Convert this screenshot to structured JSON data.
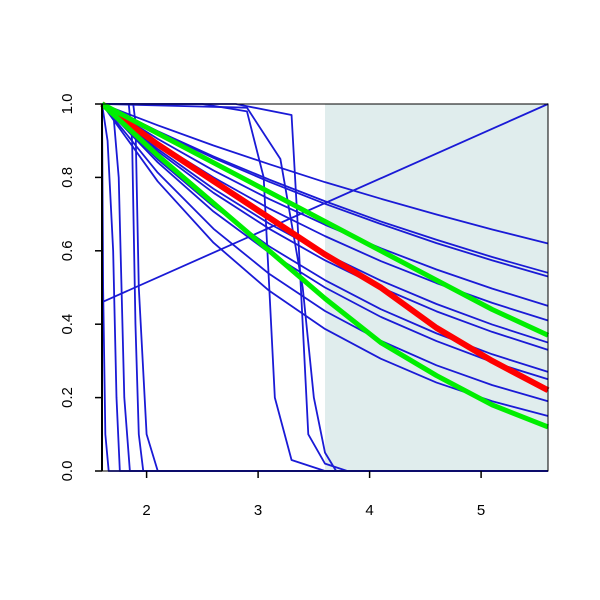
{
  "chart_data": {
    "type": "line",
    "xlim": [
      1.6,
      5.6
    ],
    "ylim": [
      0,
      1
    ],
    "xticks": [
      2,
      3,
      4,
      5
    ],
    "yticks": [
      {
        "value": 0,
        "label": "0.0"
      },
      0.2,
      0.4,
      0.6,
      0.8,
      {
        "value": 1,
        "label": "1.0"
      }
    ],
    "shaded_region": [
      3.6,
      5.6
    ],
    "shade_color": "#e0eded",
    "series": [
      {
        "color": "#1a1ad6",
        "x": [
          1.6,
          2.1,
          2.6,
          3.1,
          3.6,
          4.1,
          4.6,
          5.1,
          5.6
        ],
        "values": [
          1,
          0.942,
          0.887,
          0.836,
          0.787,
          0.742,
          0.699,
          0.658,
          0.62
        ]
      },
      {
        "color": "#1a1ad6",
        "x": [
          1.6,
          2.1,
          2.6,
          3.1,
          3.6,
          4.1,
          4.6,
          5.1,
          5.6
        ],
        "values": [
          1,
          0.926,
          0.857,
          0.794,
          0.735,
          0.68,
          0.63,
          0.583,
          0.54
        ]
      },
      {
        "color": "#1a1ad6",
        "x": [
          1.6,
          2.1,
          2.6,
          3.1,
          3.6,
          4.1,
          4.6,
          5.1,
          5.6
        ],
        "values": [
          1,
          0.924,
          0.853,
          0.788,
          0.728,
          0.673,
          0.621,
          0.574,
          0.53
        ]
      },
      {
        "color": "#1a1ad6",
        "x": [
          1.6,
          2.1,
          2.6,
          3.1,
          3.6,
          4.1,
          4.6,
          5.1,
          5.6
        ],
        "values": [
          1,
          0.905,
          0.819,
          0.741,
          0.671,
          0.607,
          0.549,
          0.497,
          0.45
        ]
      },
      {
        "color": "#1a1ad6",
        "x": [
          1.6,
          2.1,
          2.6,
          3.1,
          3.6,
          4.1,
          4.6,
          5.1,
          5.6
        ],
        "values": [
          1,
          0.894,
          0.8,
          0.715,
          0.64,
          0.572,
          0.512,
          0.458,
          0.41
        ]
      },
      {
        "color": "#1a1ad6",
        "x": [
          1.6,
          2.1,
          2.6,
          3.1,
          3.6,
          4.1,
          4.6,
          5.1,
          5.6
        ],
        "values": [
          1,
          0.877,
          0.769,
          0.674,
          0.592,
          0.519,
          0.455,
          0.399,
          0.35
        ]
      },
      {
        "color": "#1a1ad6",
        "x": [
          1.6,
          2.1,
          2.6,
          3.1,
          3.6,
          4.1,
          4.6,
          5.1,
          5.6
        ],
        "values": [
          1,
          0.871,
          0.758,
          0.66,
          0.574,
          0.5,
          0.435,
          0.379,
          0.33
        ]
      },
      {
        "color": "#1a1ad6",
        "x": [
          1.6,
          2.1,
          2.6,
          3.1,
          3.6,
          4.1,
          4.6,
          5.1,
          5.6
        ],
        "values": [
          1,
          0.849,
          0.721,
          0.612,
          0.52,
          0.441,
          0.375,
          0.318,
          0.27
        ]
      },
      {
        "color": "#1a1ad6",
        "x": [
          1.6,
          2.1,
          2.6,
          3.1,
          3.6,
          4.1,
          4.6,
          5.1,
          5.6
        ],
        "values": [
          1,
          0.841,
          0.707,
          0.595,
          0.5,
          0.42,
          0.354,
          0.297,
          0.25
        ]
      },
      {
        "color": "#1a1ad6",
        "x": [
          1.6,
          2.1,
          2.6,
          3.1,
          3.6,
          4.1,
          4.6,
          5.1,
          5.6
        ],
        "values": [
          1,
          0.813,
          0.66,
          0.537,
          0.436,
          0.355,
          0.288,
          0.234,
          0.19
        ]
      },
      {
        "color": "#1a1ad6",
        "x": [
          1.6,
          2.1,
          2.6,
          3.1,
          3.6,
          4.1,
          4.6,
          5.1,
          5.6
        ],
        "values": [
          1,
          0.789,
          0.622,
          0.491,
          0.387,
          0.306,
          0.241,
          0.19,
          0.15
        ]
      },
      {
        "color": "#1a1ad6",
        "x": [
          1.6,
          1.61,
          1.63,
          1.66,
          5.6
        ],
        "values": [
          1,
          0.5,
          0.1,
          0,
          0
        ]
      },
      {
        "color": "#1a1ad6",
        "x": [
          1.6,
          1.65,
          1.7,
          1.73,
          1.76,
          5.6
        ],
        "values": [
          1,
          0.9,
          0.6,
          0.2,
          0,
          0
        ]
      },
      {
        "color": "#1a1ad6",
        "x": [
          1.6,
          1.7,
          1.75,
          1.8,
          1.85,
          5.6
        ],
        "values": [
          1,
          0.98,
          0.8,
          0.2,
          0,
          0
        ]
      },
      {
        "color": "#1a1ad6",
        "x": [
          1.6,
          1.84,
          1.87,
          1.9,
          1.93,
          1.97,
          5.6
        ],
        "values": [
          1,
          1,
          0.9,
          0.4,
          0.1,
          0,
          0
        ]
      },
      {
        "color": "#1a1ad6",
        "x": [
          1.6,
          1.88,
          1.9,
          1.93,
          2.0,
          2.1,
          5.6
        ],
        "values": [
          1,
          1,
          0.95,
          0.5,
          0.1,
          0,
          0
        ]
      },
      {
        "color": "#1a1ad6",
        "x": [
          1.6,
          2.5,
          2.9,
          3.05,
          3.1,
          3.15,
          3.3,
          3.6,
          5.6
        ],
        "values": [
          1,
          1,
          0.98,
          0.8,
          0.5,
          0.2,
          0.03,
          0,
          0
        ]
      },
      {
        "color": "#1a1ad6",
        "x": [
          1.6,
          2.8,
          3.3,
          3.35,
          3.4,
          3.45,
          3.6,
          3.8,
          5.6
        ],
        "values": [
          1,
          1,
          0.97,
          0.7,
          0.4,
          0.1,
          0.02,
          0,
          0
        ]
      },
      {
        "color": "#1a1ad6",
        "x": [
          1.6,
          2.9,
          3.2,
          3.4,
          3.5,
          3.6,
          3.7,
          5.6
        ],
        "values": [
          1,
          0.99,
          0.85,
          0.5,
          0.2,
          0.05,
          0,
          0
        ]
      },
      {
        "color": "#1a1ad6",
        "x": [
          1.6,
          5.6
        ],
        "values": [
          0.46,
          1
        ]
      },
      {
        "color": "#ff0000",
        "width": 6,
        "x": [
          1.6,
          2.1,
          2.6,
          3.1,
          3.6,
          4.1,
          4.6,
          5.1,
          5.6
        ],
        "values": [
          1,
          0.89,
          0.79,
          0.69,
          0.59,
          0.5,
          0.39,
          0.3,
          0.22
        ]
      },
      {
        "color": "#00ee00",
        "width": 5,
        "x": [
          1.6,
          2.1,
          2.6,
          3.1,
          3.6,
          4.1,
          4.6,
          5.1,
          5.6
        ],
        "values": [
          1,
          0.92,
          0.84,
          0.76,
          0.68,
          0.6,
          0.52,
          0.44,
          0.37
        ]
      },
      {
        "color": "#00ee00",
        "width": 5,
        "x": [
          1.6,
          2.1,
          2.6,
          3.1,
          3.6,
          4.1,
          4.6,
          5.1,
          5.6
        ],
        "values": [
          1,
          0.86,
          0.73,
          0.6,
          0.47,
          0.35,
          0.26,
          0.18,
          0.12
        ]
      }
    ]
  }
}
